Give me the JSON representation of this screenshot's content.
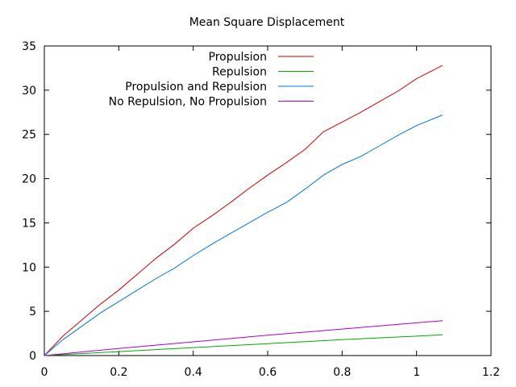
{
  "chart_data": {
    "type": "line",
    "title": "Mean Square Displacement",
    "xlabel": "",
    "ylabel": "",
    "xlim": [
      0,
      1.2
    ],
    "ylim": [
      0,
      35
    ],
    "x_ticks": [
      0,
      0.2,
      0.4,
      0.6,
      0.8,
      1,
      1.2
    ],
    "y_ticks": [
      0,
      5,
      10,
      15,
      20,
      25,
      30,
      35
    ],
    "x_tick_labels": [
      "0",
      "0.2",
      "0.4",
      "0.6",
      "0.8",
      "1",
      "1.2"
    ],
    "y_tick_labels": [
      "0",
      "5",
      "10",
      "15",
      "20",
      "25",
      "30",
      "35"
    ],
    "grid": false,
    "legend_position": "top-center",
    "series": [
      {
        "name": "Propulsion",
        "color": "#cc0000",
        "x": [
          0,
          0.05,
          0.1,
          0.15,
          0.2,
          0.25,
          0.3,
          0.35,
          0.4,
          0.45,
          0.5,
          0.55,
          0.6,
          0.65,
          0.7,
          0.75,
          0.8,
          0.85,
          0.9,
          0.95,
          1.0,
          1.07
        ],
        "y": [
          0,
          2.2,
          4.0,
          5.8,
          7.4,
          9.2,
          11.0,
          12.6,
          14.4,
          15.8,
          17.3,
          18.9,
          20.4,
          21.8,
          23.3,
          25.3,
          26.4,
          27.5,
          28.7,
          29.9,
          31.3,
          32.8
        ]
      },
      {
        "name": "Repulsion",
        "color": "#00aa00",
        "x": [
          0,
          0.2,
          0.4,
          0.6,
          0.8,
          1.0,
          1.07
        ],
        "y": [
          0,
          0.45,
          0.9,
          1.35,
          1.8,
          2.2,
          2.35
        ]
      },
      {
        "name": "Propulsion and Repulsion",
        "color": "#0077cc",
        "x": [
          0,
          0.05,
          0.1,
          0.15,
          0.2,
          0.25,
          0.3,
          0.35,
          0.4,
          0.45,
          0.5,
          0.55,
          0.6,
          0.65,
          0.7,
          0.75,
          0.8,
          0.85,
          0.9,
          0.95,
          1.0,
          1.07
        ],
        "y": [
          0,
          1.8,
          3.3,
          4.8,
          6.1,
          7.4,
          8.7,
          9.9,
          11.3,
          12.6,
          13.8,
          15.0,
          16.2,
          17.3,
          18.8,
          20.4,
          21.6,
          22.5,
          23.7,
          24.9,
          26.0,
          27.2
        ]
      },
      {
        "name": "No Repulsion, No Propulsion",
        "color": "#aa00cc",
        "x": [
          0,
          0.2,
          0.4,
          0.6,
          0.8,
          1.0,
          1.07
        ],
        "y": [
          0,
          0.8,
          1.55,
          2.3,
          3.0,
          3.7,
          3.95
        ]
      }
    ]
  }
}
